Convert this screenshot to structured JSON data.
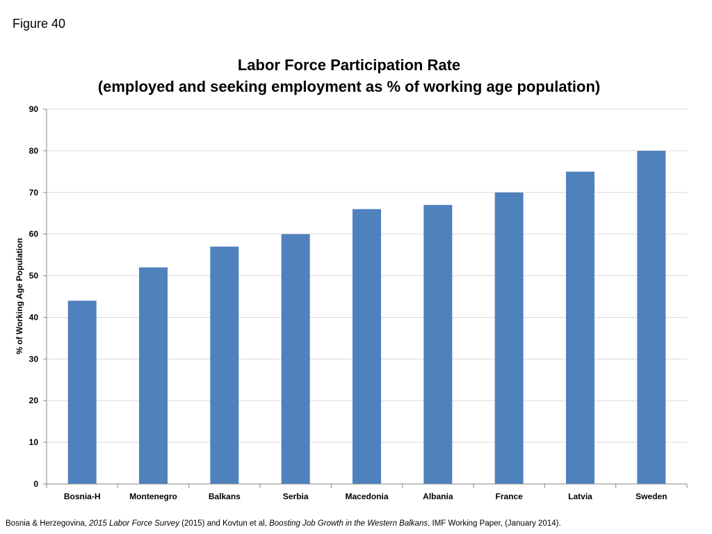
{
  "figure_label": "Figure 40",
  "title_line1": "Labor Force Participation Rate",
  "title_line2": "(employed and seeking employment as % of working age population)",
  "source": {
    "p1": "Bosnia & Herzegovina, ",
    "i1": "2015 Labor Force Survey",
    "p2": " (2015) and Kovtun et al, ",
    "i2": "Boosting Job Growth in the Western Balkans",
    "p3": ", IMF Working Paper, (January 2014)."
  },
  "chart_data": {
    "type": "bar",
    "title": "Labor Force Participation Rate (employed and seeking employment as % of working age population)",
    "categories": [
      "Bosnia-H",
      "Montenegro",
      "Balkans",
      "Serbia",
      "Macedonia",
      "Albania",
      "France",
      "Latvia",
      "Sweden"
    ],
    "values": [
      44,
      52,
      57,
      60,
      66,
      67,
      70,
      75,
      80
    ],
    "xlabel": "",
    "ylabel": "% of Working Age Population",
    "ylim": [
      0,
      90
    ],
    "yticks": [
      0,
      10,
      20,
      30,
      40,
      50,
      60,
      70,
      80,
      90
    ],
    "grid": true,
    "legend": "none",
    "bar_color": "#4f81bd",
    "grid_color": "#d9d9d9",
    "axis_color": "#868686"
  }
}
